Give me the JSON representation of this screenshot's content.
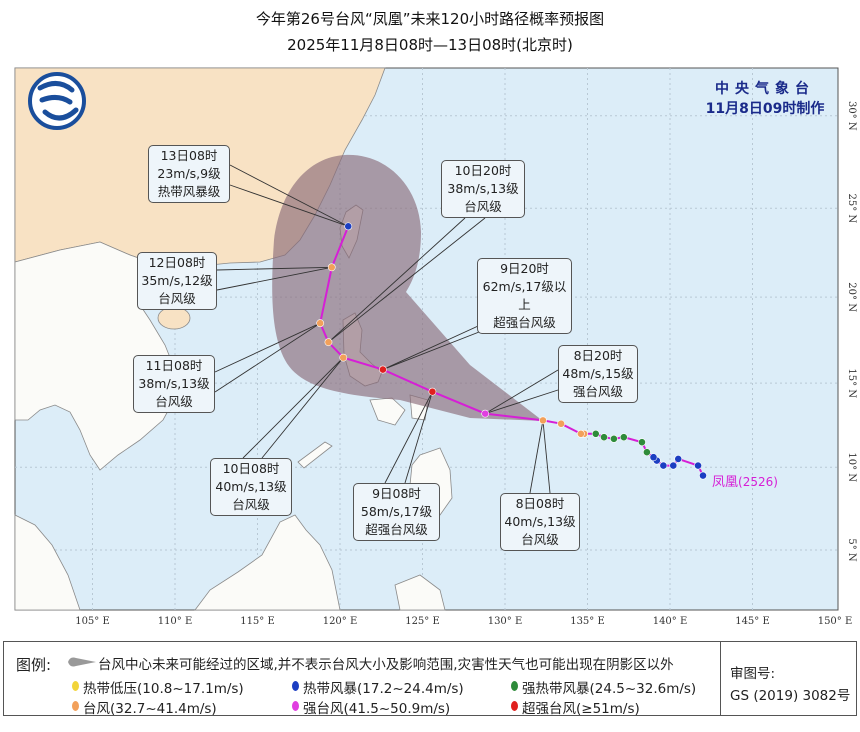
{
  "header": {
    "title": "今年第26号台风“凤凰”未来120小时路径概率预报图",
    "subtitle": "2025年11月8日08时—13日08时(北京时)"
  },
  "issuer": {
    "name": "中央气象台",
    "made_time": "11月8日09时制作"
  },
  "map": {
    "lon_ticks": [
      "105° E",
      "110° E",
      "115° E",
      "120° E",
      "125° E",
      "130° E",
      "135° E",
      "140° E",
      "145° E",
      "150° E"
    ],
    "lat_ticks": [
      "5° N",
      "10° N",
      "15° N",
      "20° N",
      "25° N",
      "30° N"
    ],
    "storm_label": "凤凰",
    "storm_id": "(2526)",
    "colors": {
      "sea": "#dcedf8",
      "china_land": "#f8e2c4",
      "other_land": "#fbfbf8",
      "cone": "#8a6c7a",
      "track": "#d61fd6",
      "tropical_depression": "#f2d43a",
      "tropical_storm": "#1c3ec2",
      "severe_tropical_storm": "#2e8b3a",
      "typhoon": "#f2a05a",
      "severe_typhoon": "#e03ee0",
      "super_typhoon": "#e0201e"
    },
    "past_track": [
      {
        "lon": 142.0,
        "lat": 9.5,
        "level": "tropical_storm"
      },
      {
        "lon": 141.7,
        "lat": 10.1,
        "level": "tropical_storm"
      },
      {
        "lon": 140.5,
        "lat": 10.5,
        "level": "tropical_storm"
      },
      {
        "lon": 140.2,
        "lat": 10.1,
        "level": "tropical_storm"
      },
      {
        "lon": 139.6,
        "lat": 10.1,
        "level": "tropical_storm"
      },
      {
        "lon": 139.2,
        "lat": 10.4,
        "level": "tropical_storm"
      },
      {
        "lon": 139.0,
        "lat": 10.6,
        "level": "tropical_storm"
      },
      {
        "lon": 138.6,
        "lat": 10.9,
        "level": "severe_tropical_storm"
      },
      {
        "lon": 138.3,
        "lat": 11.5,
        "level": "severe_tropical_storm"
      },
      {
        "lon": 137.2,
        "lat": 11.8,
        "level": "severe_tropical_storm"
      },
      {
        "lon": 136.6,
        "lat": 11.7,
        "level": "severe_tropical_storm"
      },
      {
        "lon": 136.0,
        "lat": 11.8,
        "level": "severe_tropical_storm"
      },
      {
        "lon": 135.5,
        "lat": 12.0,
        "level": "severe_tropical_storm"
      },
      {
        "lon": 134.8,
        "lat": 12.0,
        "level": "typhoon"
      },
      {
        "lon": 134.6,
        "lat": 12.0,
        "level": "typhoon"
      },
      {
        "lon": 133.4,
        "lat": 12.6,
        "level": "typhoon"
      }
    ],
    "forecast": [
      {
        "time": "8日08时",
        "wind": "40m/s,13级",
        "grade": "台风级",
        "lon": 132.3,
        "lat": 12.8,
        "level": "typhoon"
      },
      {
        "time": "8日20时",
        "wind": "48m/s,15级",
        "grade": "强台风级",
        "lon": 128.8,
        "lat": 13.2,
        "level": "severe_typhoon"
      },
      {
        "time": "9日08时",
        "wind": "58m/s,17级",
        "grade": "超强台风级",
        "lon": 125.6,
        "lat": 14.5,
        "level": "super_typhoon"
      },
      {
        "time": "9日20时",
        "wind": "62m/s,17级以上",
        "grade": "超强台风级",
        "lon": 122.6,
        "lat": 15.8,
        "level": "super_typhoon"
      },
      {
        "time": "10日08时",
        "wind": "40m/s,13级",
        "grade": "台风级",
        "lon": 120.2,
        "lat": 16.5,
        "level": "typhoon"
      },
      {
        "time": "10日20时",
        "wind": "38m/s,13级",
        "grade": "台风级",
        "lon": 119.3,
        "lat": 17.4,
        "level": "typhoon"
      },
      {
        "time": "11日08时",
        "wind": "38m/s,13级",
        "grade": "台风级",
        "lon": 118.8,
        "lat": 18.5,
        "level": "typhoon"
      },
      {
        "time": "12日08时",
        "wind": "35m/s,12级",
        "grade": "台风级",
        "lon": 119.5,
        "lat": 21.7,
        "level": "typhoon"
      },
      {
        "time": "13日08时",
        "wind": "23m/s,9级",
        "grade": "热带风暴级",
        "lon": 120.5,
        "lat": 24.0,
        "level": "tropical_storm"
      }
    ]
  },
  "legend": {
    "title": "图例:",
    "cone_desc": "台风中心未来可能经过的区域,并不表示台风大小及影响范围,灾害性天气也可能出现在阴影区以外",
    "items": [
      {
        "label": "热带低压(10.8~17.1m/s)",
        "color": "#f2d43a"
      },
      {
        "label": "热带风暴(17.2~24.4m/s)",
        "color": "#1c3ec2"
      },
      {
        "label": "强热带风暴(24.5~32.6m/s)",
        "color": "#2e8b3a"
      },
      {
        "label": "台风(32.7~41.4m/s)",
        "color": "#f2a05a"
      },
      {
        "label": "强台风(41.5~50.9m/s)",
        "color": "#e03ee0"
      },
      {
        "label": "超强台风(≥51m/s)",
        "color": "#e0201e"
      }
    ],
    "review_label": "审图号:",
    "review_no": "GS (2019) 3082号"
  }
}
